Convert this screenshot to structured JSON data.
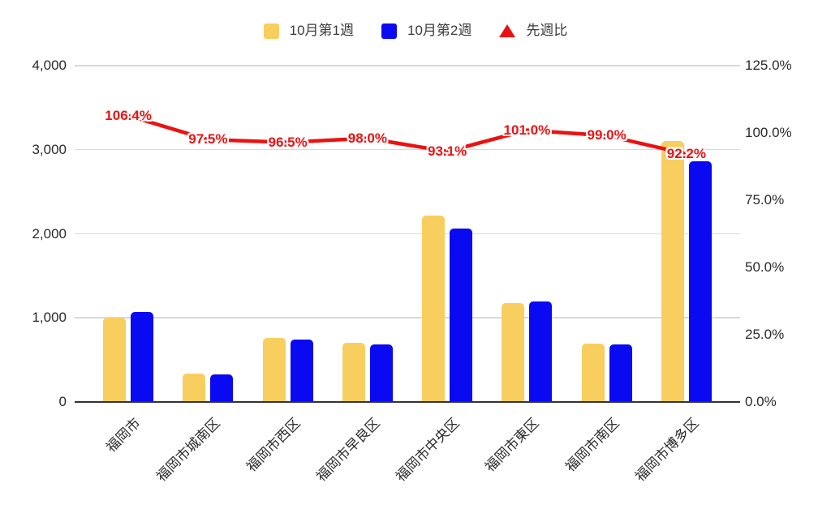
{
  "colors": {
    "background": "#ffffff",
    "bar_week1": "#f8ce5f",
    "bar_week2": "#0a0af2",
    "line_ratio": "#ec1111",
    "gridline": "#d9d9d9",
    "axis_baseline": "#333333",
    "axis_text": "#2b2b2b"
  },
  "legend": {
    "items": [
      {
        "label": "10月第1週",
        "marker": "square",
        "color": "#f8ce5f"
      },
      {
        "label": "10月第2週",
        "marker": "square",
        "color": "#0a0af2"
      },
      {
        "label": "先週比",
        "marker": "triangle",
        "color": "#ec1111"
      }
    ]
  },
  "chart_data": {
    "type": "bar",
    "subtype": "grouped-bar-with-line-combo",
    "title": "",
    "xlabel": "",
    "ylabel": "",
    "grid": true,
    "legend_position": "top-center",
    "categories": [
      "福岡市",
      "福岡市城南区",
      "福岡市西区",
      "福岡市早良区",
      "福岡市中央区",
      "福岡市東区",
      "福岡市南区",
      "福岡市博多区"
    ],
    "series": [
      {
        "name": "10月第1週",
        "type": "bar",
        "axis": "left",
        "color": "#f8ce5f",
        "values": [
          1005,
          340,
          765,
          700,
          2220,
          1180,
          690,
          3100
        ]
      },
      {
        "name": "10月第2週",
        "type": "bar",
        "axis": "left",
        "color": "#0a0af2",
        "values": [
          1069,
          332,
          738,
          686,
          2067,
          1192,
          683,
          2858
        ]
      },
      {
        "name": "先週比",
        "type": "line",
        "axis": "right",
        "color": "#ec1111",
        "values": [
          106.4,
          97.5,
          96.5,
          98.0,
          93.1,
          101.0,
          99.0,
          92.2
        ],
        "point_labels": [
          "106.4%",
          "97.5%",
          "96.5%",
          "98.0%",
          "93.1%",
          "101.0%",
          "99.0%",
          "92.2%"
        ]
      }
    ],
    "left_axis": {
      "min": 0,
      "max": 4000,
      "ticks": [
        {
          "value": 0,
          "label": "0"
        },
        {
          "value": 1000,
          "label": "1,000"
        },
        {
          "value": 2000,
          "label": "2,000"
        },
        {
          "value": 3000,
          "label": "3,000"
        },
        {
          "value": 4000,
          "label": "4,000"
        }
      ]
    },
    "right_axis": {
      "min": 0,
      "max": 125,
      "ticks": [
        {
          "value": 0,
          "label": "0.0%"
        },
        {
          "value": 25,
          "label": "25.0%"
        },
        {
          "value": 50,
          "label": "50.0%"
        },
        {
          "value": 75,
          "label": "75.0%"
        },
        {
          "value": 100,
          "label": "100.0%"
        },
        {
          "value": 125,
          "label": "125.0%"
        }
      ]
    }
  }
}
